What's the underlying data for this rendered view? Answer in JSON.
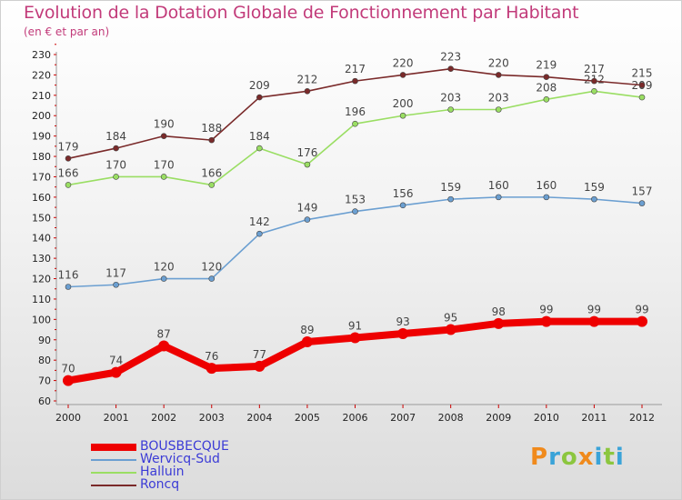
{
  "header": {
    "title": "Evolution de la Dotation Globale de Fonctionnement par Habitant",
    "subtitle": "(en € et par an)"
  },
  "logo": {
    "letters": [
      "P",
      "r",
      "o",
      "x",
      "i",
      "t",
      "i"
    ],
    "colors": [
      "#f08a1c",
      "#3aa3d8",
      "#8cc63f",
      "#f08a1c",
      "#3aa3d8",
      "#8cc63f",
      "#3aa3d8"
    ]
  },
  "chart_data": {
    "type": "line",
    "x": [
      "2000",
      "2001",
      "2002",
      "2003",
      "2004",
      "2005",
      "2006",
      "2007",
      "2008",
      "2009",
      "2010",
      "2011",
      "2012"
    ],
    "ylim": [
      60,
      230
    ],
    "yticks": [
      60,
      70,
      80,
      90,
      100,
      110,
      120,
      130,
      140,
      150,
      160,
      170,
      180,
      190,
      200,
      210,
      220,
      230
    ],
    "grid": false,
    "legend_position": "bottom-left",
    "series": [
      {
        "name": "BOUSBECQUE",
        "color": "#ee0000",
        "emphasis": true,
        "values": [
          70,
          74,
          87,
          76,
          77,
          89,
          91,
          93,
          95,
          98,
          99,
          99,
          99
        ],
        "labels": [
          "70",
          "74",
          "87",
          "76",
          "77",
          "89",
          "91",
          "93",
          "95",
          "98",
          "99",
          "99",
          "99"
        ]
      },
      {
        "name": "Wervicq-Sud",
        "color": "#6b9fd1",
        "emphasis": false,
        "values": [
          116,
          117,
          120,
          120,
          142,
          149,
          153,
          156,
          159,
          160,
          160,
          159,
          157
        ],
        "labels": [
          "116",
          "117",
          "120",
          "120",
          "142",
          "149",
          "153",
          "156",
          "159",
          "160",
          "160",
          "159",
          "157"
        ]
      },
      {
        "name": "Halluin",
        "color": "#9ade63",
        "emphasis": false,
        "values": [
          166,
          170,
          170,
          166,
          184,
          176,
          196,
          200,
          203,
          203,
          208,
          212,
          209
        ],
        "labels": [
          "166",
          "170",
          "170",
          "166",
          "184",
          "176",
          "196",
          "200",
          "203",
          "203",
          "208",
          "212",
          "209"
        ]
      },
      {
        "name": "Roncq",
        "color": "#7a2a2a",
        "emphasis": false,
        "values": [
          179,
          184,
          190,
          188,
          209,
          212,
          217,
          220,
          223,
          220,
          219,
          217,
          215
        ],
        "labels": [
          "179",
          "184",
          "190",
          "188",
          "209",
          "212",
          "217",
          "220",
          "223",
          "220",
          "219",
          "217",
          "215"
        ]
      }
    ]
  }
}
